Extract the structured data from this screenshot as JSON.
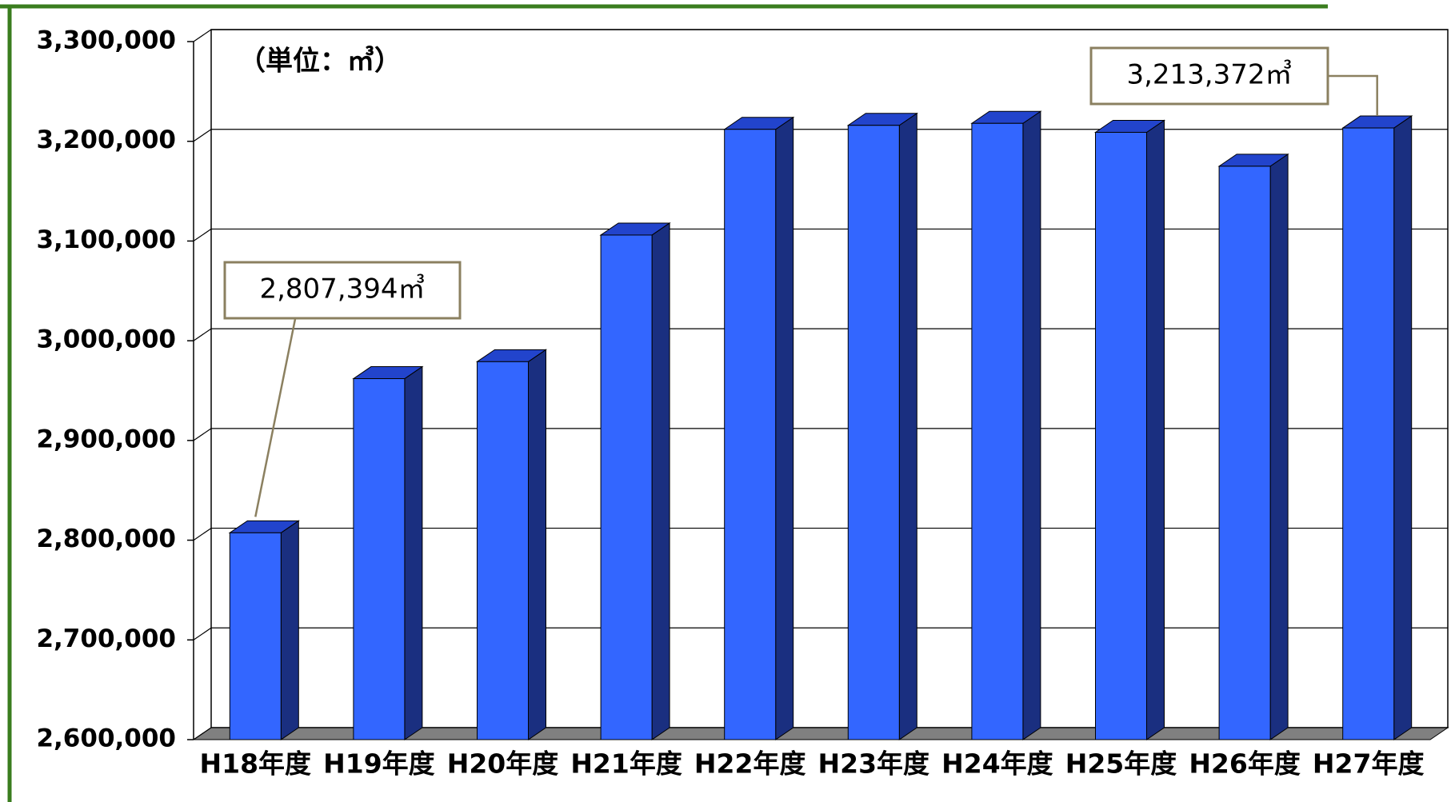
{
  "chart_data": {
    "type": "bar3d",
    "annotations": [
      "（単位：㎥）"
    ],
    "categories": [
      "H18年度",
      "H19年度",
      "H20年度",
      "H21年度",
      "H22年度",
      "H23年度",
      "H24年度",
      "H25年度",
      "H26年度",
      "H27年度"
    ],
    "values": [
      2807394,
      2962000,
      2979000,
      3106000,
      3212000,
      3216000,
      3218000,
      3209000,
      3175000,
      3213372
    ],
    "value_labels": [
      "2,807,394㎥",
      null,
      null,
      null,
      null,
      null,
      null,
      null,
      null,
      "3,213,372㎥"
    ],
    "color": "#3366ff",
    "ylim": [
      2600000,
      3300000
    ],
    "yticks": [
      {
        "value": 2600000,
        "label": "2,600,000"
      },
      {
        "value": 2700000,
        "label": "2,700,000"
      },
      {
        "value": 2800000,
        "label": "2,800,000"
      },
      {
        "value": 2900000,
        "label": "2,900,000"
      },
      {
        "value": 3000000,
        "label": "3,000,000"
      },
      {
        "value": 3100000,
        "label": "3,100,000"
      },
      {
        "value": 3200000,
        "label": "3,200,000"
      },
      {
        "value": 3300000,
        "label": "3,300,000"
      }
    ],
    "grid": true
  }
}
